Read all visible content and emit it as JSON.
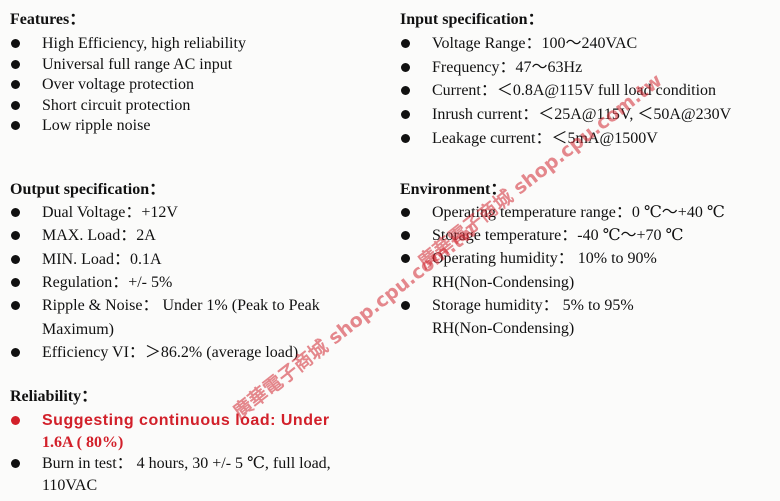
{
  "columns": [
    {
      "sections": [
        {
          "title": "Features：",
          "items": [
            {
              "lines": [
                "High Efficiency, high reliability"
              ]
            },
            {
              "lines": [
                "Universal full range AC input"
              ]
            },
            {
              "lines": [
                "Over voltage protection"
              ]
            },
            {
              "lines": [
                "Short circuit protection"
              ]
            },
            {
              "lines": [
                "Low ripple noise"
              ]
            }
          ]
        },
        {
          "title": "Output specification：",
          "items": [
            {
              "lines": [
                "Dual Voltage：+12V"
              ]
            },
            {
              "lines": [
                "MAX. Load：2A"
              ]
            },
            {
              "lines": [
                "MIN. Load：0.1A"
              ]
            },
            {
              "lines": [
                "Regulation：+/- 5%"
              ]
            },
            {
              "lines": [
                "Ripple & Noise：  Under 1%  (Peak to Peak",
                "Maximum)"
              ]
            },
            {
              "lines": [
                "Efficiency VI：＞86.2% (average load)"
              ]
            }
          ]
        },
        {
          "title": "Reliability：",
          "items": [
            {
              "lines": [
                "Suggesting continuous load: Under",
                "1.6A ( 80%)"
              ],
              "emphasis": true
            },
            {
              "lines": [
                "Burn in test：  4 hours, 30 +/- 5 ℃, full load,",
                "110VAC"
              ]
            }
          ]
        }
      ]
    },
    {
      "sections": [
        {
          "title": "Input specification：",
          "items": [
            {
              "lines": [
                "Voltage Range：100～240VAC"
              ]
            },
            {
              "lines": [
                "Frequency：47～63Hz"
              ]
            },
            {
              "lines": [
                "Current：＜0.8A@115V full load condition"
              ]
            },
            {
              "lines": [
                "Inrush current：＜25A@115V, ＜50A@230V"
              ]
            },
            {
              "lines": [
                "Leakage current：＜5mA@1500V"
              ]
            }
          ]
        },
        {
          "title": "Environment：",
          "items": [
            {
              "lines": [
                "Operating temperature range：0 ℃～+40 ℃"
              ]
            },
            {
              "lines": [
                "Storage temperature：-40 ℃～+70 ℃"
              ]
            },
            {
              "lines": [
                "Operating humidity：  10%  to 90%",
                "RH(Non-Condensing)"
              ]
            },
            {
              "lines": [
                "Storage humidity：  5%  to 95%",
                "RH(Non-Condensing)"
              ]
            }
          ]
        }
      ]
    }
  ],
  "watermarks": [
    "廣華電子商城 shop.cpu.com.tw",
    "廣華電子商城 shop.cpu.com.tw"
  ]
}
